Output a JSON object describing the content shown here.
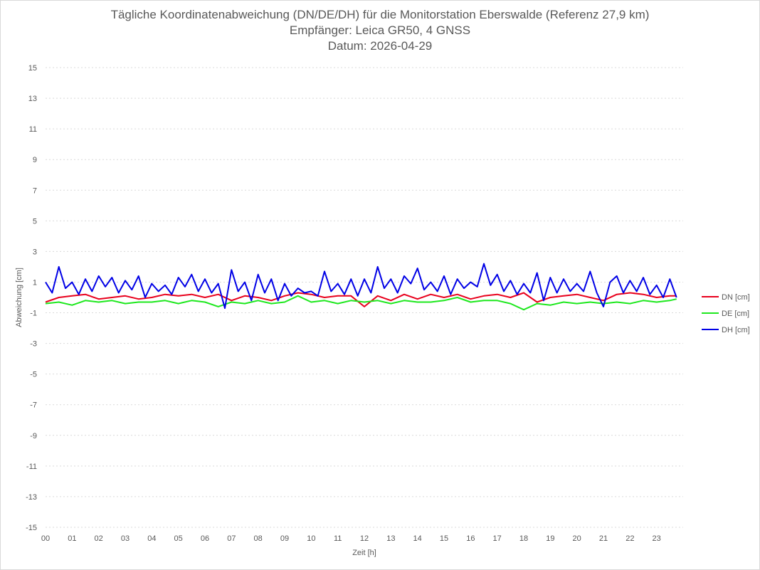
{
  "chart_data": {
    "type": "line",
    "title": "Tägliche Koordinatenabweichung (DN/DE/DH) für die Monitorstation Eberswalde (Referenz 27,9 km)",
    "subtitle_1": "Empfänger: Leica GR50, 4 GNSS",
    "subtitle_2": "Datum: 2026-04-29",
    "xlabel": "Zeit [h]",
    "ylabel": "Abweichung [cm]",
    "xlim": [
      0,
      24
    ],
    "ylim": [
      -15,
      15
    ],
    "x_ticks": [
      "00",
      "01",
      "02",
      "03",
      "04",
      "05",
      "06",
      "07",
      "08",
      "09",
      "10",
      "11",
      "12",
      "13",
      "14",
      "15",
      "16",
      "17",
      "18",
      "19",
      "20",
      "21",
      "22",
      "23"
    ],
    "y_ticks": [
      15,
      13,
      11,
      9,
      7,
      5,
      3,
      1,
      -1,
      -3,
      -5,
      -7,
      -9,
      -11,
      -13,
      -15
    ],
    "grid": "horizontal dotted",
    "legend_position": "right",
    "series": [
      {
        "name": "DN [cm]",
        "color": "#e8001c",
        "x": [
          0.0,
          0.5,
          1.0,
          1.5,
          2.0,
          2.5,
          3.0,
          3.5,
          4.0,
          4.5,
          5.0,
          5.5,
          6.0,
          6.5,
          7.0,
          7.5,
          8.0,
          8.5,
          9.0,
          9.5,
          10.0,
          10.5,
          11.0,
          11.5,
          12.0,
          12.5,
          13.0,
          13.5,
          14.0,
          14.5,
          15.0,
          15.5,
          16.0,
          16.5,
          17.0,
          17.5,
          18.0,
          18.5,
          19.0,
          19.5,
          20.0,
          20.5,
          21.0,
          21.5,
          22.0,
          22.5,
          23.0,
          23.5,
          23.75
        ],
        "values": [
          -0.3,
          0.0,
          0.1,
          0.2,
          -0.1,
          0.0,
          0.1,
          -0.1,
          0.0,
          0.2,
          0.1,
          0.2,
          0.0,
          0.2,
          -0.2,
          0.1,
          0.0,
          -0.2,
          0.1,
          0.3,
          0.2,
          0.0,
          0.1,
          0.1,
          -0.6,
          0.1,
          -0.2,
          0.2,
          -0.1,
          0.2,
          0.0,
          0.2,
          -0.1,
          0.1,
          0.2,
          0.0,
          0.3,
          -0.3,
          0.0,
          0.1,
          0.2,
          0.0,
          -0.2,
          0.2,
          0.3,
          0.2,
          0.0,
          0.1,
          0.1
        ]
      },
      {
        "name": "DE [cm]",
        "color": "#1ee81e",
        "x": [
          0.0,
          0.5,
          1.0,
          1.5,
          2.0,
          2.5,
          3.0,
          3.5,
          4.0,
          4.5,
          5.0,
          5.5,
          6.0,
          6.5,
          7.0,
          7.5,
          8.0,
          8.5,
          9.0,
          9.5,
          10.0,
          10.5,
          11.0,
          11.5,
          12.0,
          12.5,
          13.0,
          13.5,
          14.0,
          14.5,
          15.0,
          15.5,
          16.0,
          16.5,
          17.0,
          17.5,
          18.0,
          18.5,
          19.0,
          19.5,
          20.0,
          20.5,
          21.0,
          21.5,
          22.0,
          22.5,
          23.0,
          23.5,
          23.75
        ],
        "values": [
          -0.4,
          -0.3,
          -0.5,
          -0.2,
          -0.3,
          -0.2,
          -0.4,
          -0.3,
          -0.3,
          -0.2,
          -0.4,
          -0.2,
          -0.3,
          -0.6,
          -0.3,
          -0.4,
          -0.2,
          -0.4,
          -0.3,
          0.1,
          -0.3,
          -0.2,
          -0.4,
          -0.2,
          -0.3,
          -0.2,
          -0.4,
          -0.2,
          -0.3,
          -0.3,
          -0.2,
          0.0,
          -0.3,
          -0.2,
          -0.2,
          -0.4,
          -0.8,
          -0.4,
          -0.5,
          -0.3,
          -0.4,
          -0.3,
          -0.4,
          -0.3,
          -0.4,
          -0.2,
          -0.3,
          -0.2,
          -0.1
        ]
      },
      {
        "name": "DH [cm]",
        "color": "#0000e6",
        "x": [
          0.0,
          0.25,
          0.5,
          0.75,
          1.0,
          1.25,
          1.5,
          1.75,
          2.0,
          2.25,
          2.5,
          2.75,
          3.0,
          3.25,
          3.5,
          3.75,
          4.0,
          4.25,
          4.5,
          4.75,
          5.0,
          5.25,
          5.5,
          5.75,
          6.0,
          6.25,
          6.5,
          6.75,
          7.0,
          7.25,
          7.5,
          7.75,
          8.0,
          8.25,
          8.5,
          8.75,
          9.0,
          9.25,
          9.5,
          9.75,
          10.0,
          10.25,
          10.5,
          10.75,
          11.0,
          11.25,
          11.5,
          11.75,
          12.0,
          12.25,
          12.5,
          12.75,
          13.0,
          13.25,
          13.5,
          13.75,
          14.0,
          14.25,
          14.5,
          14.75,
          15.0,
          15.25,
          15.5,
          15.75,
          16.0,
          16.25,
          16.5,
          16.75,
          17.0,
          17.25,
          17.5,
          17.75,
          18.0,
          18.25,
          18.5,
          18.75,
          19.0,
          19.25,
          19.5,
          19.75,
          20.0,
          20.25,
          20.5,
          20.75,
          21.0,
          21.25,
          21.5,
          21.75,
          22.0,
          22.25,
          22.5,
          22.75,
          23.0,
          23.25,
          23.5,
          23.75
        ],
        "values": [
          1.0,
          0.3,
          2.0,
          0.6,
          1.0,
          0.2,
          1.2,
          0.4,
          1.4,
          0.7,
          1.3,
          0.3,
          1.1,
          0.5,
          1.4,
          0.0,
          0.9,
          0.4,
          0.8,
          0.2,
          1.3,
          0.7,
          1.5,
          0.4,
          1.2,
          0.3,
          0.9,
          -0.7,
          1.8,
          0.4,
          1.0,
          -0.2,
          1.5,
          0.3,
          1.2,
          -0.2,
          0.9,
          0.1,
          0.6,
          0.3,
          0.4,
          0.1,
          1.7,
          0.4,
          0.9,
          0.2,
          1.2,
          0.1,
          1.2,
          0.3,
          2.0,
          0.6,
          1.2,
          0.3,
          1.4,
          0.9,
          1.9,
          0.5,
          1.0,
          0.4,
          1.4,
          0.2,
          1.2,
          0.6,
          1.0,
          0.7,
          2.2,
          0.8,
          1.5,
          0.4,
          1.1,
          0.2,
          0.9,
          0.3,
          1.6,
          -0.2,
          1.3,
          0.3,
          1.2,
          0.4,
          0.9,
          0.4,
          1.7,
          0.3,
          -0.6,
          1.0,
          1.4,
          0.3,
          1.1,
          0.4,
          1.3,
          0.2,
          0.8,
          0.0,
          1.2,
          0.0
        ]
      }
    ]
  }
}
